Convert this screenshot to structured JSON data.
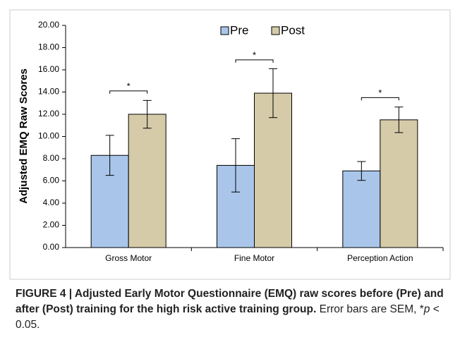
{
  "chart_data": {
    "type": "bar",
    "ylabel": "Adjusted EMQ Raw Scores",
    "categories": [
      "Gross Motor",
      "Fine Motor",
      "Perception Action"
    ],
    "series": [
      {
        "name": "Pre",
        "color": "#a9c6ea",
        "values": [
          8.3,
          7.4,
          6.9
        ],
        "errors": [
          1.8,
          2.4,
          0.85
        ]
      },
      {
        "name": "Post",
        "color": "#d5cba9",
        "values": [
          12.0,
          13.9,
          11.5
        ],
        "errors": [
          1.25,
          2.2,
          1.15
        ]
      }
    ],
    "ylim": [
      0,
      20
    ],
    "yticks": [
      {
        "value": 0,
        "label": "0.00"
      },
      {
        "value": 2,
        "label": "2.00"
      },
      {
        "value": 4,
        "label": "4.00"
      },
      {
        "value": 6,
        "label": "6.00"
      },
      {
        "value": 8,
        "label": "8.00"
      },
      {
        "value": 10,
        "label": "10.00"
      },
      {
        "value": 12,
        "label": "12.00"
      },
      {
        "value": 14,
        "label": "14.00"
      },
      {
        "value": 16,
        "label": "16.00"
      },
      {
        "value": 18,
        "label": "18.00"
      },
      {
        "value": 20,
        "label": "20.00"
      }
    ],
    "legend_position": "top",
    "significance": [
      {
        "text": "*",
        "y": 14.1
      },
      {
        "text": "*",
        "y": 16.9
      },
      {
        "text": "*",
        "y": 13.5
      }
    ]
  },
  "caption": {
    "label": "FIGURE 4 | Adjusted Early Motor Questionnaire (EMQ) raw scores before (Pre) and after (Post) training for the high risk active training group.",
    "text": "Error bars are SEM, *",
    "italic": "p",
    "tail": "< 0.05."
  }
}
